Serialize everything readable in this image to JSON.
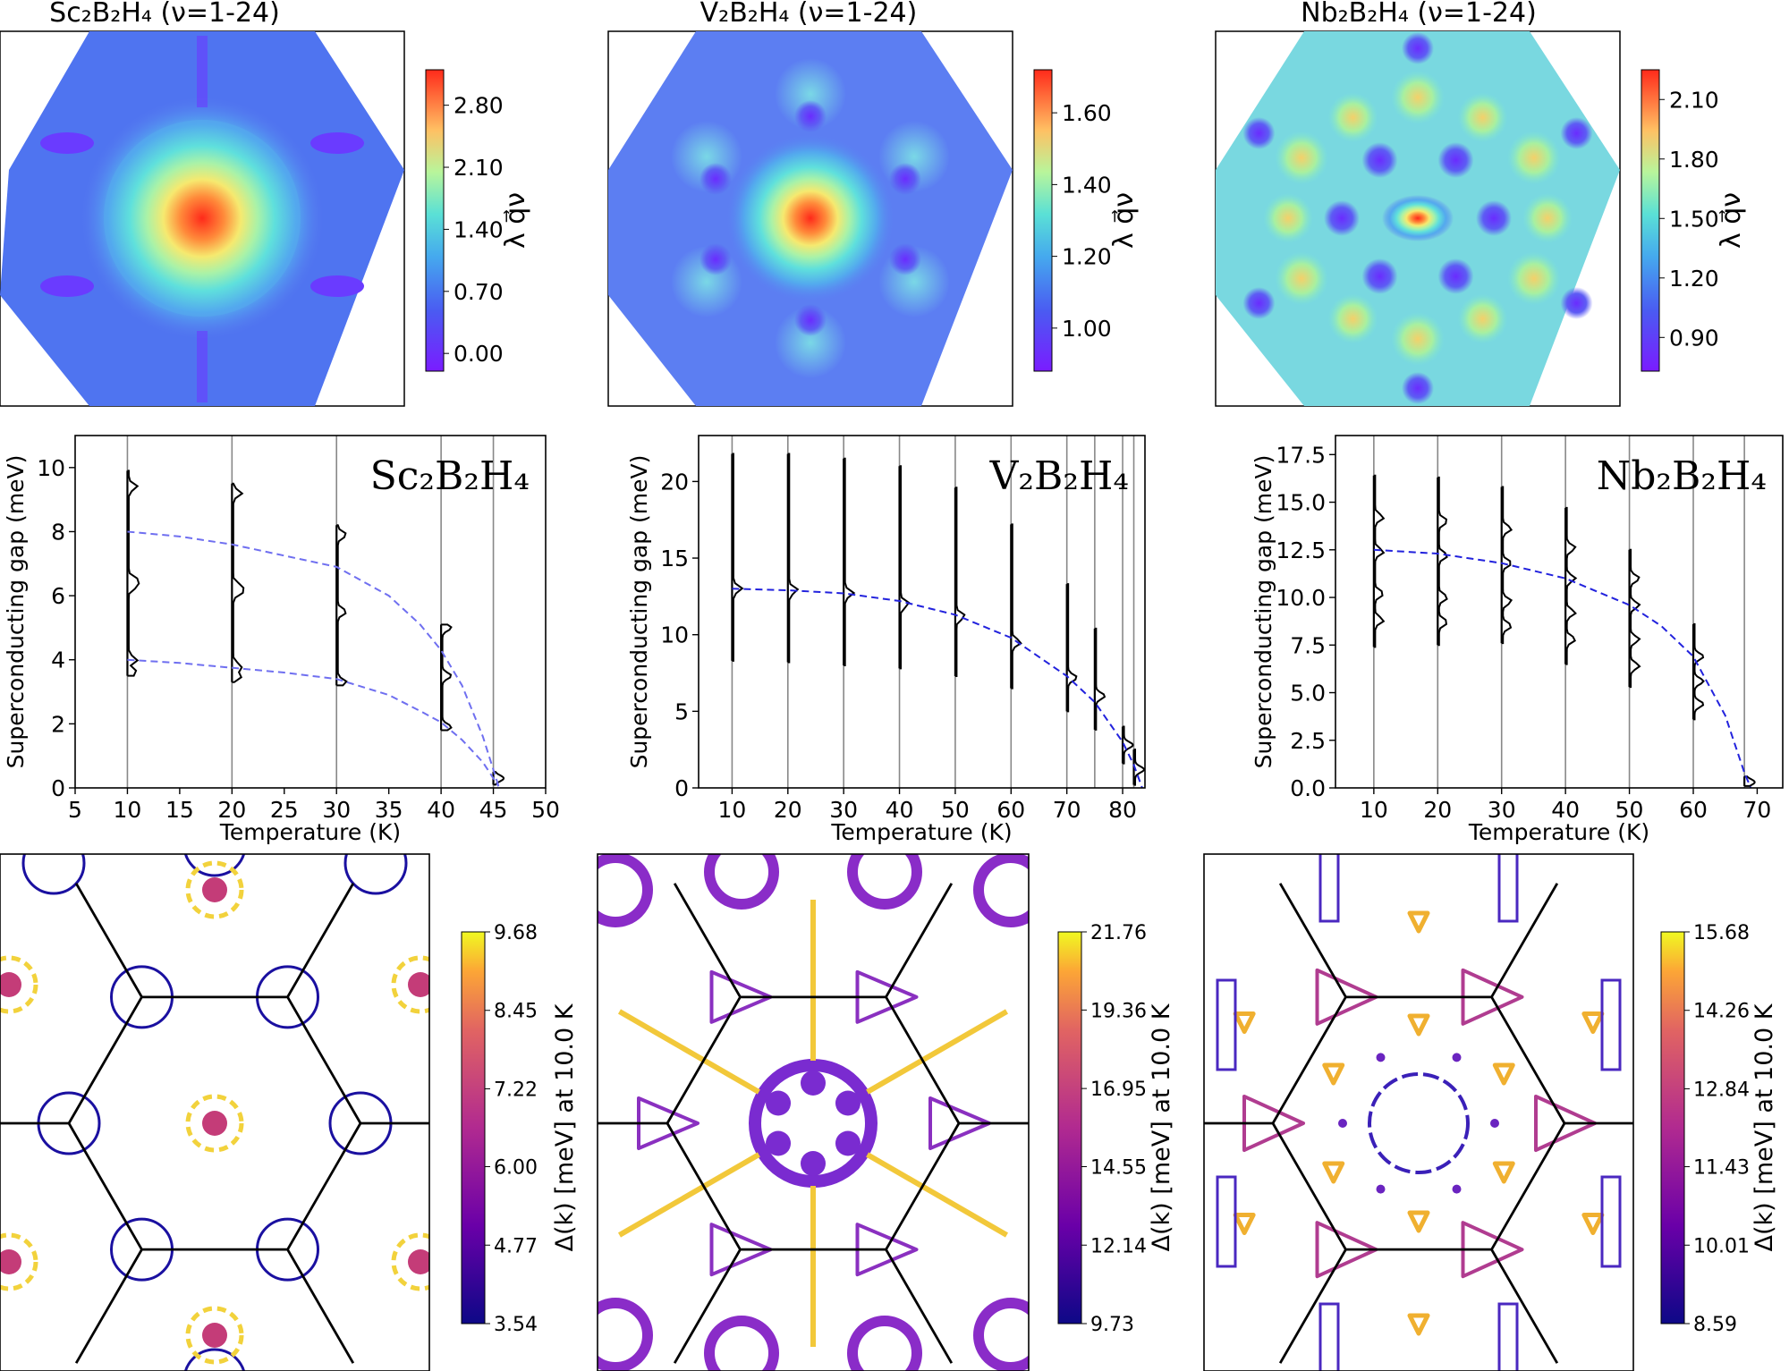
{
  "heatmaps": [
    {
      "material": "Sc₂B₂H₄",
      "title": "Sc₂B₂H₄ (ν=1-24)",
      "colorbar_label": "λ q⃗ν",
      "colorbar_ticks": [
        "0.00",
        "0.70",
        "1.40",
        "2.10",
        "2.80"
      ],
      "colorbar_range": [
        -0.2,
        3.2
      ],
      "pattern": "center"
    },
    {
      "material": "V₂B₂H₄",
      "title": "V₂B₂H₄ (ν=1-24)",
      "colorbar_label": "λ q⃗ν",
      "colorbar_ticks": [
        "1.00",
        "1.20",
        "1.40",
        "1.60"
      ],
      "colorbar_range": [
        0.88,
        1.72
      ],
      "pattern": "ring"
    },
    {
      "material": "Nb₂B₂H₄",
      "title": "Nb₂B₂H₄ (ν=1-24)",
      "colorbar_label": "λ q⃗ν",
      "colorbar_ticks": [
        "0.90",
        "1.20",
        "1.50",
        "1.80",
        "2.10"
      ],
      "colorbar_range": [
        0.73,
        2.25
      ],
      "pattern": "spots"
    }
  ],
  "chart_data": [
    {
      "type": "line",
      "title": "Sc₂B₂H₄",
      "xlabel": "Temperature (K)",
      "ylabel": "Superconducting gap (meV)",
      "xlim": [
        5,
        50
      ],
      "ylim": [
        0,
        11
      ],
      "xticks": [
        5,
        10,
        15,
        20,
        25,
        30,
        35,
        40,
        45,
        50
      ],
      "yticks": [
        0,
        2,
        4,
        6,
        8,
        10
      ],
      "tick_labels_x": [
        "5",
        "10",
        "15",
        "20",
        "25",
        "30",
        "35",
        "40",
        "45",
        "50"
      ],
      "tick_labels_y": [
        "0",
        "2",
        "4",
        "6",
        "8",
        "10"
      ],
      "temperatures": [
        10,
        20,
        30,
        40,
        45
      ],
      "series": [
        {
          "name": "gap 1 fit",
          "x": [
            10,
            15,
            20,
            25,
            30,
            35,
            38,
            40,
            42,
            44,
            45.5
          ],
          "y": [
            8.0,
            7.85,
            7.6,
            7.25,
            6.9,
            6.0,
            5.1,
            4.3,
            3.2,
            1.6,
            0.05
          ]
        },
        {
          "name": "gap 2 fit",
          "x": [
            10,
            15,
            20,
            25,
            30,
            35,
            38,
            40,
            42,
            44,
            45.5
          ],
          "y": [
            4.0,
            3.9,
            3.75,
            3.6,
            3.4,
            2.9,
            2.4,
            2.05,
            1.5,
            0.8,
            0.05
          ]
        }
      ],
      "distributions": [
        {
          "T": 10,
          "ymin": 3.5,
          "ymax": 9.9,
          "peaks": [
            3.6,
            4.0,
            6.3,
            6.5,
            9.4
          ]
        },
        {
          "T": 20,
          "ymin": 3.3,
          "ymax": 9.5,
          "peaks": [
            3.5,
            3.8,
            6.1,
            6.3,
            9.2
          ]
        },
        {
          "T": 30,
          "ymin": 3.2,
          "ymax": 8.2,
          "peaks": [
            3.3,
            5.5,
            7.9
          ]
        },
        {
          "T": 40,
          "ymin": 1.8,
          "ymax": 5.1,
          "peaks": [
            1.9,
            3.5,
            5.0
          ]
        },
        {
          "T": 45,
          "ymin": 0.1,
          "ymax": 0.5,
          "peaks": [
            0.3
          ]
        }
      ]
    },
    {
      "type": "line",
      "title": "V₂B₂H₄",
      "xlabel": "Temperature (K)",
      "ylabel": "Superconducting gap (meV)",
      "xlim": [
        4,
        84
      ],
      "ylim": [
        0,
        23
      ],
      "xticks": [
        10,
        20,
        30,
        40,
        50,
        60,
        70,
        80
      ],
      "yticks": [
        0,
        5,
        10,
        15,
        20
      ],
      "tick_labels_x": [
        "10",
        "20",
        "30",
        "40",
        "50",
        "60",
        "70",
        "80"
      ],
      "tick_labels_y": [
        "0",
        "5",
        "10",
        "15",
        "20"
      ],
      "temperatures": [
        10,
        20,
        30,
        40,
        50,
        60,
        70,
        75,
        80,
        82
      ],
      "series": [
        {
          "name": "gap fit",
          "x": [
            10,
            20,
            30,
            40,
            50,
            60,
            70,
            75,
            80,
            82,
            83.5
          ],
          "y": [
            13.0,
            12.9,
            12.7,
            12.2,
            11.3,
            9.8,
            7.3,
            5.6,
            3.0,
            1.5,
            0.0
          ]
        }
      ],
      "distributions": [
        {
          "T": 10,
          "ymin": 8.3,
          "ymax": 21.8,
          "peaks": [
            13.0
          ]
        },
        {
          "T": 20,
          "ymin": 8.2,
          "ymax": 21.8,
          "peaks": [
            12.9
          ]
        },
        {
          "T": 30,
          "ymin": 8.0,
          "ymax": 21.5,
          "peaks": [
            12.7
          ]
        },
        {
          "T": 40,
          "ymin": 7.8,
          "ymax": 21.0,
          "peaks": [
            12.0
          ]
        },
        {
          "T": 50,
          "ymin": 7.3,
          "ymax": 19.6,
          "peaks": [
            11.2
          ]
        },
        {
          "T": 60,
          "ymin": 6.5,
          "ymax": 17.2,
          "peaks": [
            9.5
          ]
        },
        {
          "T": 70,
          "ymin": 5.0,
          "ymax": 13.3,
          "peaks": [
            7.2
          ]
        },
        {
          "T": 75,
          "ymin": 3.8,
          "ymax": 10.4,
          "peaks": [
            6.0
          ]
        },
        {
          "T": 80,
          "ymin": 1.6,
          "ymax": 4.0,
          "peaks": [
            2.8
          ]
        },
        {
          "T": 82,
          "ymin": 0.2,
          "ymax": 2.5,
          "peaks": [
            1.2
          ]
        }
      ]
    },
    {
      "type": "line",
      "title": "Nb₂B₂H₄",
      "xlabel": "Temperature (K)",
      "ylabel": "Superconducting gap (meV)",
      "xlim": [
        4,
        74
      ],
      "ylim": [
        0,
        18.5
      ],
      "xticks": [
        10,
        20,
        30,
        40,
        50,
        60,
        70
      ],
      "yticks": [
        0,
        2.5,
        5,
        7.5,
        10,
        12.5,
        15,
        17.5
      ],
      "tick_labels_x": [
        "10",
        "20",
        "30",
        "40",
        "50",
        "60",
        "70"
      ],
      "tick_labels_y": [
        "0.0",
        "2.5",
        "5.0",
        "7.5",
        "10.0",
        "12.5",
        "15.0",
        "17.5"
      ],
      "temperatures": [
        10,
        20,
        30,
        40,
        50,
        60,
        68
      ],
      "series": [
        {
          "name": "gap fit",
          "x": [
            10,
            20,
            30,
            40,
            50,
            55,
            60,
            65,
            68,
            69
          ],
          "y": [
            12.5,
            12.3,
            11.8,
            11.0,
            9.6,
            8.5,
            6.9,
            3.8,
            0.8,
            0.0
          ]
        }
      ],
      "distributions": [
        {
          "T": 10,
          "ymin": 7.4,
          "ymax": 16.4,
          "peaks": [
            8.8,
            10.2,
            12.4,
            14.2
          ]
        },
        {
          "T": 20,
          "ymin": 7.5,
          "ymax": 16.3,
          "peaks": [
            8.7,
            10.0,
            12.2,
            14.0
          ]
        },
        {
          "T": 30,
          "ymin": 7.6,
          "ymax": 15.8,
          "peaks": [
            8.5,
            9.8,
            11.8,
            13.6
          ]
        },
        {
          "T": 40,
          "ymin": 6.5,
          "ymax": 14.7,
          "peaks": [
            7.8,
            9.2,
            11.0,
            12.6
          ]
        },
        {
          "T": 50,
          "ymin": 5.3,
          "ymax": 12.5,
          "peaks": [
            6.4,
            7.8,
            9.6,
            11.0
          ]
        },
        {
          "T": 60,
          "ymin": 3.6,
          "ymax": 8.6,
          "peaks": [
            4.4,
            5.6,
            6.9
          ]
        },
        {
          "T": 68,
          "ymin": 0.1,
          "ymax": 0.6,
          "peaks": [
            0.3
          ]
        }
      ]
    }
  ],
  "fermi_maps": [
    {
      "material": "Sc₂B₂H₄",
      "colorbar_label": "Δ(k) [meV] at 10.0 K",
      "colorbar_ticks": [
        "3.54",
        "4.77",
        "6.00",
        "7.22",
        "8.45",
        "9.68"
      ],
      "colorbar_range": [
        3.54,
        9.68
      ],
      "pattern": "circles"
    },
    {
      "material": "V₂B₂H₄",
      "colorbar_label": "Δ(k) [meV] at 10.0 K",
      "colorbar_ticks": [
        "9.73",
        "12.14",
        "14.55",
        "16.95",
        "19.36",
        "21.76"
      ],
      "colorbar_range": [
        9.73,
        21.76
      ],
      "pattern": "web"
    },
    {
      "material": "Nb₂B₂H₄",
      "colorbar_label": "Δ(k) [meV] at 10.0 K",
      "colorbar_ticks": [
        "8.59",
        "10.01",
        "11.43",
        "12.84",
        "14.26",
        "15.68"
      ],
      "colorbar_range": [
        8.59,
        15.68
      ],
      "pattern": "pockets"
    }
  ]
}
